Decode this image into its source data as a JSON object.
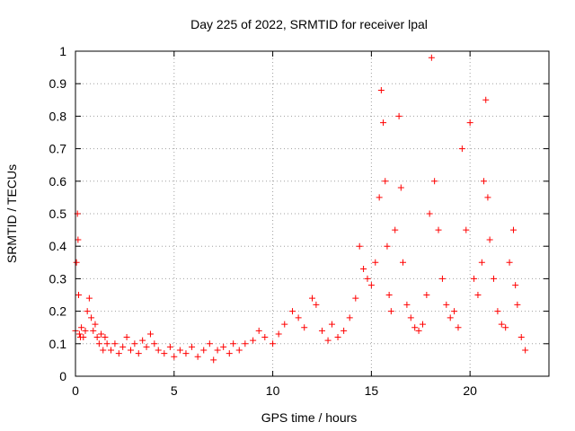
{
  "chart_data": {
    "type": "scatter",
    "title": "Day 225 of 2022, SRMTID for receiver lpal",
    "xlabel": "GPS time / hours",
    "ylabel": "SRMTID / TECUs",
    "xlim": [
      0,
      24
    ],
    "ylim": [
      0,
      1
    ],
    "xticks": [
      0,
      5,
      10,
      15,
      20
    ],
    "yticks": [
      0,
      0.1,
      0.2,
      0.3,
      0.4,
      0.5,
      0.6,
      0.7,
      0.8,
      0.9,
      1
    ],
    "grid": true,
    "marker": "+",
    "color": "#ff0000",
    "series": [
      {
        "name": "SRMTID",
        "x": [
          0.0,
          0.05,
          0.1,
          0.13,
          0.16,
          0.2,
          0.25,
          0.3,
          0.4,
          0.5,
          0.6,
          0.7,
          0.8,
          0.9,
          1.0,
          1.1,
          1.2,
          1.3,
          1.4,
          1.5,
          1.6,
          1.8,
          2.0,
          2.2,
          2.4,
          2.6,
          2.8,
          3.0,
          3.2,
          3.4,
          3.6,
          3.8,
          4.0,
          4.2,
          4.5,
          4.8,
          5.0,
          5.3,
          5.6,
          5.9,
          6.2,
          6.5,
          6.8,
          7.0,
          7.2,
          7.5,
          7.8,
          8.0,
          8.3,
          8.6,
          9.0,
          9.3,
          9.6,
          10.0,
          10.3,
          10.6,
          11.0,
          11.3,
          11.6,
          12.0,
          12.2,
          12.5,
          12.8,
          13.0,
          13.3,
          13.6,
          13.9,
          14.2,
          14.4,
          14.6,
          14.8,
          15.0,
          15.2,
          15.4,
          15.5,
          15.6,
          15.7,
          15.8,
          15.9,
          16.0,
          16.2,
          16.4,
          16.5,
          16.6,
          16.8,
          17.0,
          17.2,
          17.4,
          17.6,
          17.8,
          17.95,
          18.05,
          18.2,
          18.4,
          18.6,
          18.8,
          19.0,
          19.2,
          19.4,
          19.6,
          19.8,
          20.0,
          20.2,
          20.4,
          20.6,
          20.7,
          20.8,
          20.9,
          21.0,
          21.2,
          21.4,
          21.6,
          21.8,
          22.0,
          22.2,
          22.3,
          22.4,
          22.6,
          22.8
        ],
        "y": [
          0.14,
          0.35,
          0.5,
          0.42,
          0.25,
          0.13,
          0.12,
          0.15,
          0.12,
          0.14,
          0.2,
          0.24,
          0.18,
          0.14,
          0.16,
          0.12,
          0.1,
          0.13,
          0.08,
          0.12,
          0.1,
          0.08,
          0.1,
          0.07,
          0.09,
          0.12,
          0.08,
          0.1,
          0.07,
          0.11,
          0.09,
          0.13,
          0.1,
          0.08,
          0.07,
          0.09,
          0.06,
          0.08,
          0.07,
          0.09,
          0.06,
          0.08,
          0.1,
          0.05,
          0.08,
          0.09,
          0.07,
          0.1,
          0.08,
          0.1,
          0.11,
          0.14,
          0.12,
          0.1,
          0.13,
          0.16,
          0.2,
          0.18,
          0.15,
          0.24,
          0.22,
          0.14,
          0.11,
          0.16,
          0.12,
          0.14,
          0.18,
          0.24,
          0.4,
          0.33,
          0.3,
          0.28,
          0.35,
          0.55,
          0.88,
          0.78,
          0.6,
          0.4,
          0.25,
          0.2,
          0.45,
          0.8,
          0.58,
          0.35,
          0.22,
          0.18,
          0.15,
          0.14,
          0.16,
          0.25,
          0.5,
          0.98,
          0.6,
          0.45,
          0.3,
          0.22,
          0.18,
          0.2,
          0.15,
          0.7,
          0.45,
          0.78,
          0.3,
          0.25,
          0.35,
          0.6,
          0.85,
          0.55,
          0.42,
          0.3,
          0.2,
          0.16,
          0.15,
          0.35,
          0.45,
          0.28,
          0.22,
          0.12,
          0.08
        ]
      }
    ]
  }
}
